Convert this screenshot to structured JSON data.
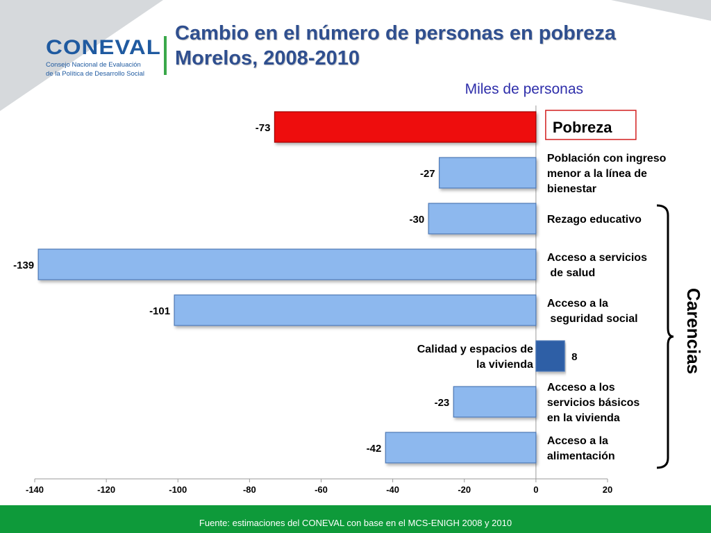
{
  "header": {
    "title_line1": "Cambio en el número de personas en pobreza",
    "title_line2": "Morelos, 2008-2010",
    "logo_text": "CONEVAL",
    "logo_sub_line1": "Consejo Nacional de Evaluación",
    "logo_sub_line2": "de la Política de Desarrollo Social"
  },
  "chart_data": {
    "type": "bar",
    "orientation": "horizontal",
    "subtitle": "Miles de personas",
    "categories": [
      "Pobreza",
      "Población con ingreso menor a la línea de bienestar",
      "Rezago educativo",
      "Acceso a servicios de salud",
      "Acceso a la seguridad social",
      "Calidad y espacios de la vivienda",
      "Acceso a los servicios básicos en la vivienda",
      "Acceso a la alimentación"
    ],
    "category_lines": [
      [
        "Pobreza"
      ],
      [
        "Población con ingreso",
        "menor a la línea de",
        "bienestar"
      ],
      [
        "Rezago educativo"
      ],
      [
        "Acceso a servicios",
        " de salud"
      ],
      [
        "Acceso a  la",
        " seguridad social"
      ],
      [
        "Calidad y espacios de",
        "la vivienda"
      ],
      [
        "Acceso a los",
        "servicios básicos",
        "en la vivienda"
      ],
      [
        "Acceso a la",
        "alimentación"
      ]
    ],
    "values": [
      -73,
      -27,
      -30,
      -139,
      -101,
      8,
      -23,
      -42
    ],
    "value_labels": [
      "-73",
      "-27",
      "-30",
      "-139",
      "-101",
      "8",
      "-23",
      "-42"
    ],
    "xlim": [
      -140,
      20
    ],
    "xticks": [
      -140,
      -120,
      -100,
      -80,
      -60,
      -40,
      -20,
      0,
      20
    ],
    "bracket_label": "Carencias",
    "bracket_categories": [
      "Rezago educativo",
      "Acceso a servicios de salud",
      "Acceso a la seguridad social",
      "Calidad y espacios de la vivienda",
      "Acceso a los servicios básicos en la vivienda",
      "Acceso a la alimentación"
    ],
    "colors": {
      "highlight": "#ee1111",
      "negative": "#8db8ee",
      "positive": "#2f5fa6",
      "bar_edge": "#4d78b5"
    }
  },
  "footer": {
    "source": "Fuente: estimaciones del CONEVAL con base en el MCS-ENIGH 2008 y 2010"
  }
}
